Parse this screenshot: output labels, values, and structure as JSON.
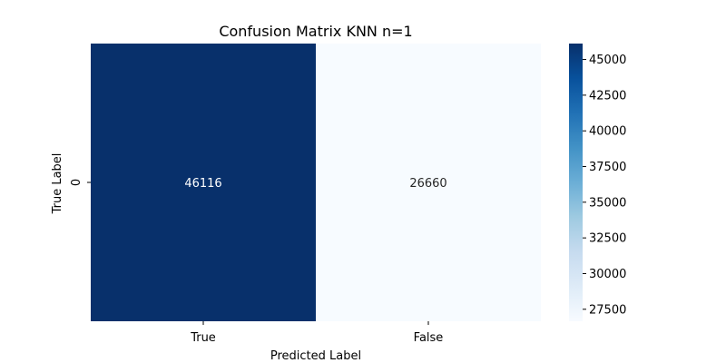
{
  "chart_data": {
    "type": "heatmap",
    "title": "Confusion Matrix KNN n=1",
    "xlabel": "Predicted Label",
    "ylabel": "True Label",
    "x_categories": [
      "True",
      "False"
    ],
    "y_categories": [
      "0"
    ],
    "values": [
      [
        46116,
        26660
      ]
    ],
    "colormap": "Blues",
    "colorbar": {
      "min": 26660,
      "max": 46116,
      "ticks": [
        27500,
        30000,
        32500,
        35000,
        37500,
        40000,
        42500,
        45000
      ],
      "tick_labels": [
        "27500",
        "30000",
        "32500",
        "35000",
        "37500",
        "40000",
        "42500",
        "45000"
      ]
    },
    "colors": {
      "low": "#f7fbff",
      "high": "#08306b",
      "text_on_dark": "#ffffff",
      "text_on_light": "#262626"
    }
  }
}
